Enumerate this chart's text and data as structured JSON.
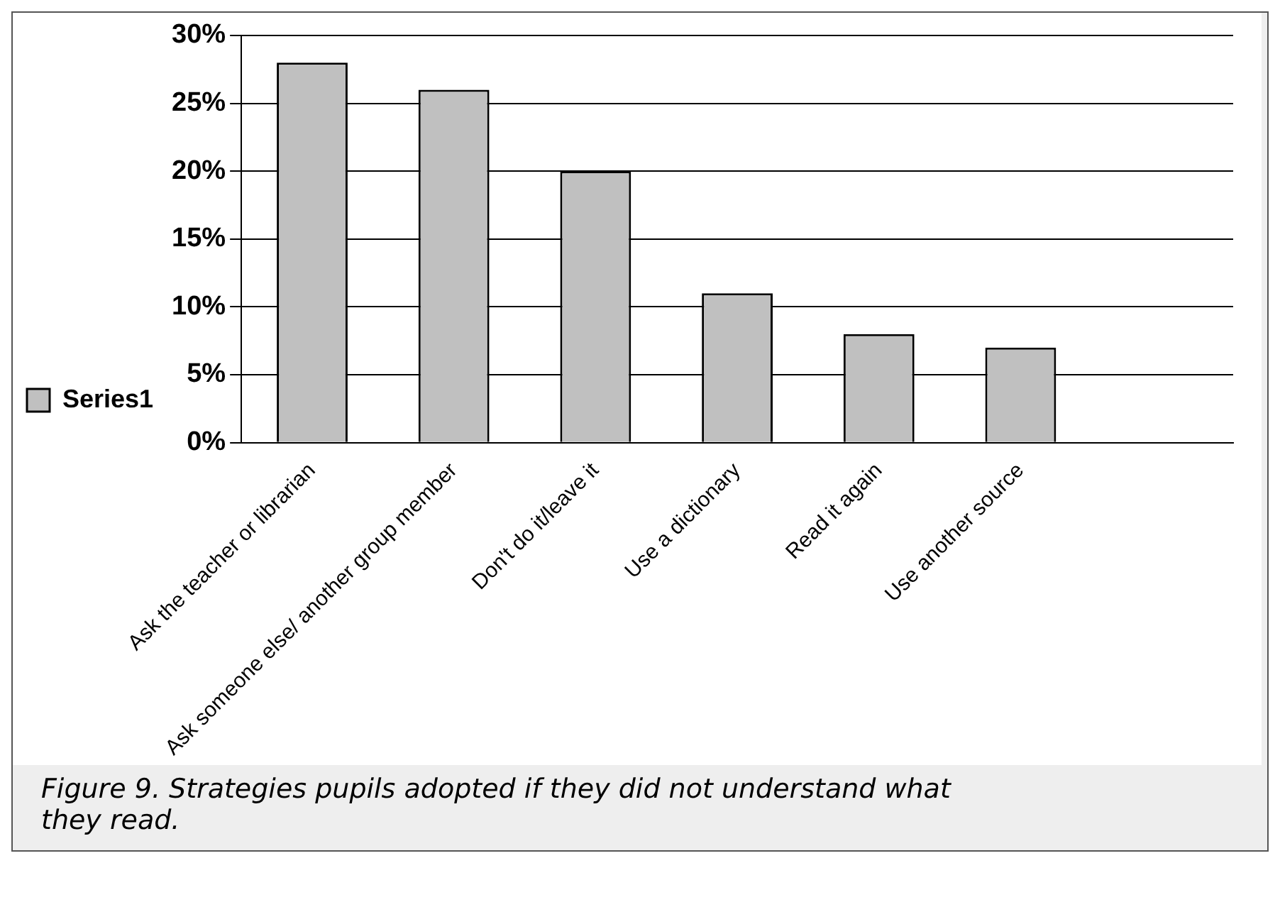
{
  "chart_data": {
    "type": "bar",
    "categories": [
      "Ask the teacher or librarian",
      "Ask someone else/ another group member",
      "Don't do it/leave it",
      "Use a dictionary",
      "Read it again",
      "Use another source",
      null
    ],
    "series": [
      {
        "name": "Series1",
        "color": "#c0c0c0",
        "values": [
          28,
          26,
          20,
          11,
          8,
          7,
          null
        ]
      }
    ],
    "ylim": [
      0,
      30
    ],
    "yticks": [
      {
        "value": 0,
        "label": "0%"
      },
      {
        "value": 5,
        "label": "5%"
      },
      {
        "value": 10,
        "label": "10%"
      },
      {
        "value": 15,
        "label": "15%"
      },
      {
        "value": 20,
        "label": "20%"
      },
      {
        "value": 25,
        "label": "25%"
      },
      {
        "value": 30,
        "label": "30%"
      }
    ],
    "grid": "y",
    "legend": "left",
    "annotations": [
      "Figure 9. Strategies pupils adopted if they did not understand what they read."
    ]
  }
}
